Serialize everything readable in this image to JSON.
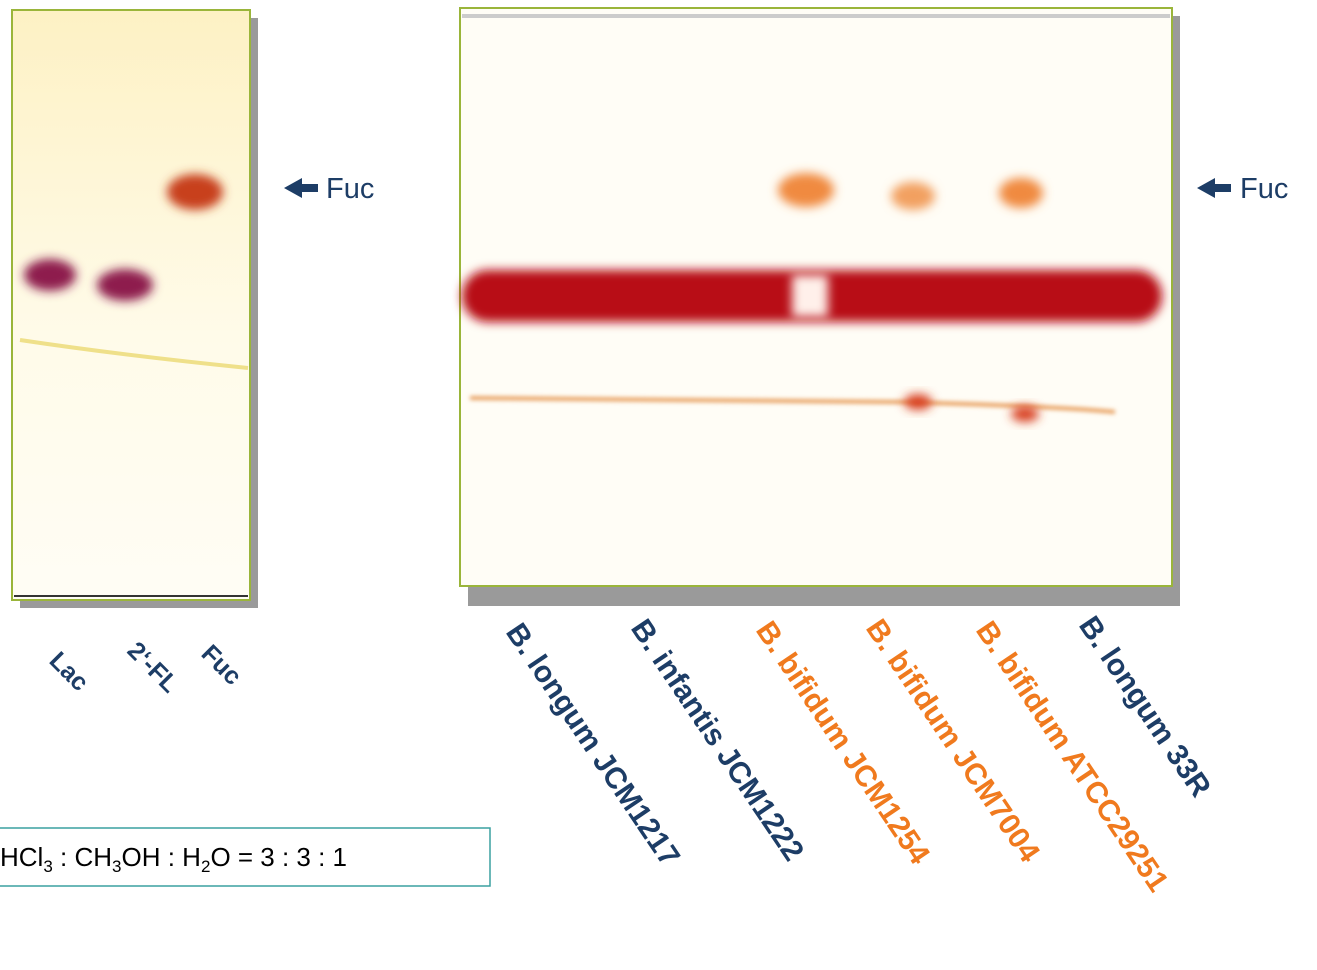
{
  "plate_left": {
    "arrow_label": "Fuc",
    "lanes": [
      "Lac",
      "2‘-FL",
      "Fuc"
    ]
  },
  "plate_right": {
    "arrow_label": "Fuc",
    "lanes": [
      "B. longum JCM1217",
      "B. infantis JCM1222",
      "B. bifidum JCM1254",
      "B. bifidum JCM7004",
      "B. bifidum ATCC29251",
      "B. longum 33R"
    ]
  },
  "formula": [
    "HCl",
    "3",
    " : CH",
    "3",
    "OH : H",
    "2",
    "O = 3 : 3 : 1"
  ]
}
